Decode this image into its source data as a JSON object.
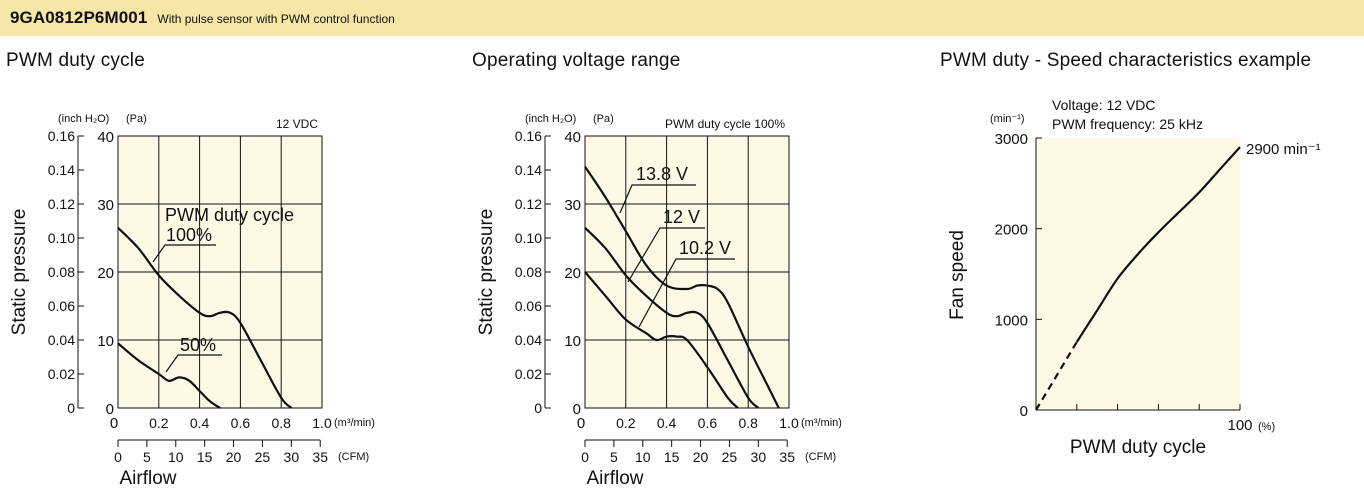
{
  "header": {
    "model": "9GA0812P6M001",
    "description": "With pulse sensor with PWM control function"
  },
  "colors": {
    "header_bg": "#f6e7a6",
    "plot_bg": "#fdf9e6",
    "ink": "#111111"
  },
  "chart_data": [
    {
      "type": "line",
      "section_title": "PWM duty cycle",
      "condition": "12 VDC",
      "ylabel": "Static pressure",
      "xlabel": "Airflow",
      "y_unit_left": "(inch H₂O)",
      "y_unit_right": "(Pa)",
      "x_unit_top": "(m³/min)",
      "x_unit_bottom": "(CFM)",
      "xlim": [
        0,
        1.0
      ],
      "ylim_pa": [
        0,
        40
      ],
      "y_ticks_inch": [
        "0",
        "0.02",
        "0.04",
        "0.06",
        "0.08",
        "0.10",
        "0.12",
        "0.14",
        "0.16"
      ],
      "y_ticks_pa": [
        "0",
        "10",
        "20",
        "30",
        "40"
      ],
      "x_ticks_m3": [
        "0.2",
        "0.4",
        "0.6",
        "0.8",
        "1.0"
      ],
      "x_ticks_cfm": [
        "0",
        "5",
        "10",
        "15",
        "20",
        "25",
        "30",
        "35"
      ],
      "annotations": [
        "PWM duty cycle",
        "100%",
        "50%"
      ],
      "series": [
        {
          "name": "100%",
          "x": [
            0,
            0.1,
            0.2,
            0.3,
            0.4,
            0.45,
            0.5,
            0.55,
            0.6,
            0.7,
            0.8,
            0.85
          ],
          "y": [
            26.5,
            23.5,
            19.5,
            16.5,
            14,
            13.5,
            14,
            14,
            12.5,
            7,
            1.5,
            0
          ]
        },
        {
          "name": "50%",
          "x": [
            0,
            0.1,
            0.2,
            0.25,
            0.3,
            0.35,
            0.4,
            0.45,
            0.5
          ],
          "y": [
            9.5,
            7,
            5,
            4,
            4.5,
            4,
            2.5,
            1,
            0
          ]
        }
      ]
    },
    {
      "type": "line",
      "section_title": "Operating voltage range",
      "condition": "PWM duty cycle 100%",
      "ylabel": "Static pressure",
      "xlabel": "Airflow",
      "y_unit_left": "(inch H₂O)",
      "y_unit_right": "(Pa)",
      "x_unit_top": "(m³/min)",
      "x_unit_bottom": "(CFM)",
      "xlim": [
        0,
        1.0
      ],
      "ylim_pa": [
        0,
        40
      ],
      "y_ticks_inch": [
        "0",
        "0.02",
        "0.04",
        "0.06",
        "0.08",
        "0.10",
        "0.12",
        "0.14",
        "0.16"
      ],
      "y_ticks_pa": [
        "0",
        "10",
        "20",
        "30",
        "40"
      ],
      "x_ticks_m3": [
        "0.2",
        "0.4",
        "0.6",
        "0.8",
        "1.0"
      ],
      "x_ticks_cfm": [
        "0",
        "5",
        "10",
        "15",
        "20",
        "25",
        "30",
        "35"
      ],
      "annotations": [
        "13.8 V",
        "12 V",
        "10.2 V"
      ],
      "series": [
        {
          "name": "13.8 V",
          "x": [
            0,
            0.1,
            0.2,
            0.3,
            0.4,
            0.5,
            0.55,
            0.6,
            0.65,
            0.7,
            0.8,
            0.9,
            0.95
          ],
          "y": [
            35.5,
            31,
            26,
            21,
            18,
            17.5,
            18,
            18,
            17.5,
            15.5,
            9,
            3,
            0
          ]
        },
        {
          "name": "12 V",
          "x": [
            0,
            0.1,
            0.2,
            0.3,
            0.4,
            0.45,
            0.5,
            0.55,
            0.6,
            0.7,
            0.8,
            0.85
          ],
          "y": [
            26.5,
            23.5,
            19.5,
            16.5,
            14,
            13.5,
            14,
            14,
            12.5,
            7,
            1.5,
            0
          ]
        },
        {
          "name": "10.2 V",
          "x": [
            0,
            0.1,
            0.2,
            0.3,
            0.35,
            0.4,
            0.45,
            0.5,
            0.6,
            0.7,
            0.75
          ],
          "y": [
            20,
            16.5,
            13,
            11,
            10,
            10.5,
            10.5,
            10,
            6,
            1.5,
            0
          ]
        }
      ]
    },
    {
      "type": "line",
      "section_title": "PWM duty - Speed characteristics example",
      "condition_lines": [
        "Voltage: 12 VDC",
        "PWM frequency: 25 kHz"
      ],
      "ylabel": "Fan speed",
      "xlabel": "PWM duty cycle",
      "y_unit": "(min⁻¹)",
      "x_unit": "(%)",
      "xlim": [
        0,
        100
      ],
      "ylim": [
        0,
        3000
      ],
      "y_ticks": [
        "0",
        "1000",
        "2000",
        "3000"
      ],
      "x_ticks": [
        "100"
      ],
      "end_label": "2900 min⁻¹",
      "series": [
        {
          "name": "solid",
          "x": [
            20,
            30,
            40,
            50,
            60,
            70,
            80,
            90,
            100
          ],
          "y": [
            750,
            1100,
            1450,
            1720,
            1960,
            2180,
            2400,
            2650,
            2900
          ]
        },
        {
          "name": "dashed",
          "x": [
            0,
            20
          ],
          "y": [
            0,
            750
          ]
        }
      ]
    }
  ]
}
